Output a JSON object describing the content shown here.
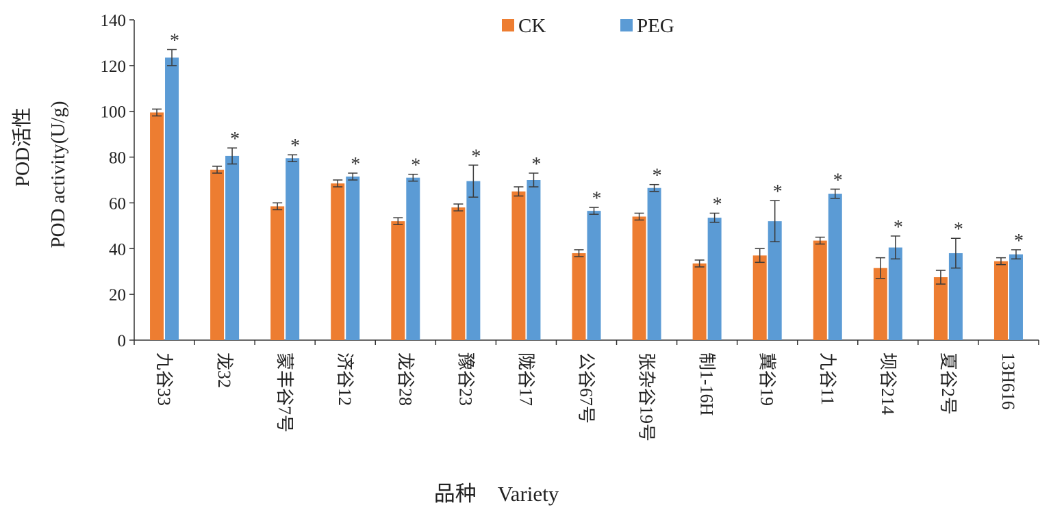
{
  "chart_data": {
    "type": "bar",
    "categories": [
      "九谷33",
      "龙32",
      "蒙丰谷7号",
      "济谷12",
      "龙谷28",
      "豫谷23",
      "陇谷17",
      "公谷67号",
      "张杂谷19号",
      "制1-16H",
      "冀谷19",
      "九谷11",
      "坝谷214",
      "夏谷2号",
      "13H616"
    ],
    "series": [
      {
        "name": "CK",
        "color": "#ED7D31",
        "values": [
          99.5,
          74.5,
          58.5,
          68.5,
          52,
          58,
          65,
          38,
          54,
          33.5,
          37,
          43.5,
          31.5,
          27.5,
          34.5
        ],
        "errors": [
          1.5,
          1.5,
          1.5,
          1.5,
          1.5,
          1.5,
          2,
          1.5,
          1.5,
          1.5,
          3,
          1.5,
          4.5,
          3,
          1.5
        ]
      },
      {
        "name": "PEG",
        "color": "#5B9BD5",
        "values": [
          123.5,
          80.5,
          79.5,
          71.5,
          71,
          69.5,
          70,
          56.5,
          66.5,
          53.5,
          52,
          64,
          40.5,
          38,
          37.5
        ],
        "errors": [
          3.5,
          3.5,
          1.5,
          1.5,
          1.5,
          7,
          3,
          1.5,
          1.5,
          2,
          9,
          2,
          5,
          6.5,
          2
        ]
      }
    ],
    "significance_marks": [
      "*",
      "*",
      "*",
      "*",
      "*",
      "*",
      "*",
      "*",
      "*",
      "*",
      "*",
      "*",
      "*",
      "*",
      "*"
    ],
    "ylabel_zh": "POD活性",
    "ylabel_en": "POD activity(U/g)",
    "xlabel": "品种    Variety",
    "ylim": [
      0,
      140
    ],
    "yticks": [
      0,
      20,
      40,
      60,
      80,
      100,
      120,
      140
    ],
    "legend_position": "top-center",
    "grid": false
  }
}
